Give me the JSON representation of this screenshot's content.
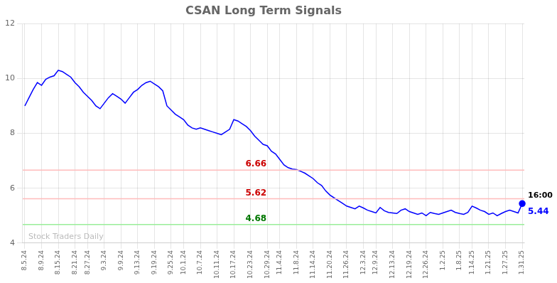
{
  "chart_data": {
    "type": "line",
    "title": "CSAN Long Term Signals",
    "categories": [
      "8.5.24",
      null,
      null,
      null,
      "8.9.24",
      null,
      null,
      null,
      "8.15.24",
      null,
      null,
      null,
      "8.21.24",
      null,
      null,
      "8.27.24",
      null,
      null,
      null,
      "9.3.24",
      null,
      null,
      null,
      "9.9.24",
      null,
      null,
      null,
      "9.13.24",
      null,
      null,
      null,
      "9.19.24",
      null,
      null,
      null,
      "9.25.24",
      null,
      null,
      "10.1.24",
      null,
      null,
      null,
      "10.7.24",
      null,
      null,
      null,
      "10.11.24",
      null,
      null,
      null,
      "10.17.24",
      null,
      null,
      null,
      "10.23.24",
      null,
      null,
      null,
      "10.29.24",
      null,
      null,
      "11.4.24",
      null,
      null,
      null,
      "11.8.24",
      null,
      null,
      null,
      "11.14.24",
      null,
      null,
      null,
      "11.20.24",
      null,
      null,
      null,
      "11.26.24",
      null,
      null,
      null,
      "12.3.24",
      null,
      null,
      "12.9.24",
      null,
      null,
      null,
      "12.13.24",
      null,
      null,
      null,
      "12.19.24",
      null,
      null,
      null,
      "12.26.24",
      null,
      null,
      null,
      "1.2.25",
      null,
      null,
      null,
      "1.8.25",
      null,
      null,
      "1.14.25",
      null,
      null,
      null,
      "1.21.25",
      null,
      null,
      null,
      "1.27.25",
      null,
      null,
      null,
      "1.31.25"
    ],
    "values": [
      9.0,
      9.3,
      9.6,
      9.85,
      9.75,
      9.97,
      10.05,
      10.1,
      10.3,
      10.25,
      10.15,
      10.05,
      9.85,
      9.7,
      9.5,
      9.35,
      9.2,
      9.0,
      8.9,
      9.1,
      9.3,
      9.45,
      9.35,
      9.25,
      9.1,
      9.3,
      9.5,
      9.6,
      9.75,
      9.85,
      9.9,
      9.8,
      9.7,
      9.55,
      9.0,
      8.85,
      8.7,
      8.6,
      8.5,
      8.3,
      8.2,
      8.15,
      8.2,
      8.15,
      8.1,
      8.05,
      8.0,
      7.95,
      8.05,
      8.15,
      8.5,
      8.45,
      8.35,
      8.25,
      8.1,
      7.9,
      7.75,
      7.6,
      7.55,
      7.35,
      7.25,
      7.05,
      6.85,
      6.75,
      6.7,
      6.68,
      6.62,
      6.55,
      6.45,
      6.35,
      6.2,
      6.1,
      5.9,
      5.75,
      5.65,
      5.55,
      5.45,
      5.35,
      5.3,
      5.25,
      5.35,
      5.28,
      5.2,
      5.15,
      5.1,
      5.3,
      5.18,
      5.12,
      5.1,
      5.08,
      5.2,
      5.25,
      5.15,
      5.1,
      5.05,
      5.1,
      5.0,
      5.12,
      5.08,
      5.05,
      5.1,
      5.15,
      5.2,
      5.12,
      5.08,
      5.05,
      5.12,
      5.35,
      5.28,
      5.2,
      5.15,
      5.05,
      5.1,
      5.0,
      5.08,
      5.15,
      5.2,
      5.15,
      5.1,
      5.44
    ],
    "color": "blue",
    "ylim": [
      4,
      12
    ],
    "yticks": [
      4,
      6,
      8,
      10,
      12
    ],
    "grid": true,
    "reference_lines": [
      {
        "y": 6.66,
        "color": "#ffbbbb",
        "label": "6.66",
        "label_color": "#cc0000"
      },
      {
        "y": 5.62,
        "color": "#ffbbbb",
        "label": "5.62",
        "label_color": "#cc0000"
      },
      {
        "y": 4.68,
        "color": "#99ee99",
        "label": "4.68",
        "label_color": "#007700"
      }
    ],
    "annotations": [
      {
        "text": "Stock Traders Daily",
        "color": "#bbbbbb"
      },
      {
        "text": "16:00",
        "color": "black"
      },
      {
        "text": "5.44",
        "color": "blue",
        "marker": "circle"
      }
    ]
  }
}
